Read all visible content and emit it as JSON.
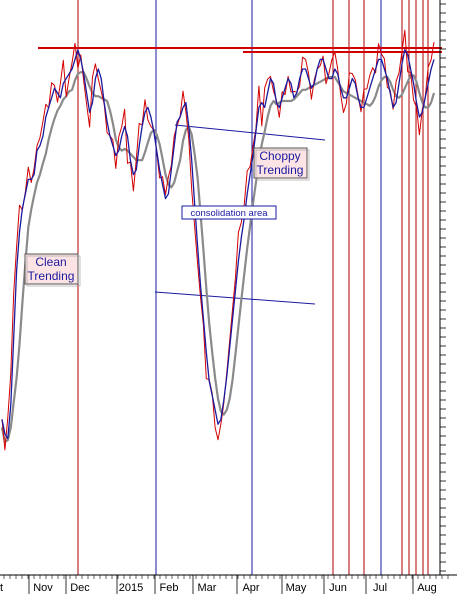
{
  "chart_data": {
    "type": "line",
    "title": "",
    "xlabel": "",
    "ylabel": "",
    "x_tick_labels": [
      "Nov",
      "Dec",
      "2015",
      "Feb",
      "Mar",
      "Apr",
      "May",
      "Jun",
      "Jul",
      "Aug"
    ],
    "grid": false,
    "y_axis_side": "right",
    "colors": {
      "price": "#d40000",
      "fast_ma": "#1a1aa0",
      "slow_ma": "#8a8a8a",
      "red_marker": "#b00000",
      "blue_marker": "#1a1aa0",
      "annotation_fill": "#fde4e4"
    },
    "series": [
      {
        "role": "price",
        "values": [
          22,
          16,
          20,
          30,
          48,
          58,
          64,
          68,
          70,
          74,
          70,
          76,
          80,
          78,
          84,
          86,
          88,
          90,
          92,
          88,
          90,
          94,
          92,
          96,
          94,
          100,
          98,
          96,
          92,
          88,
          84,
          92,
          94,
          96,
          90,
          86,
          82,
          80,
          78,
          76,
          80,
          82,
          84,
          78,
          74,
          72,
          76,
          82,
          84,
          88,
          86,
          84,
          80,
          76,
          72,
          70,
          66,
          72,
          76,
          82,
          86,
          84,
          90,
          86,
          80,
          72,
          62,
          54,
          46,
          40,
          32,
          28,
          26,
          22,
          20,
          24,
          28,
          34,
          40,
          46,
          52,
          58,
          62,
          66,
          72,
          74,
          80,
          84,
          90,
          86,
          88,
          92,
          94,
          90,
          86,
          88,
          90,
          92,
          94,
          90,
          88,
          92,
          94,
          96,
          94,
          92,
          90,
          94,
          96,
          98,
          96,
          94,
          92,
          94,
          96,
          92,
          90,
          88,
          90,
          92,
          94,
          90,
          88,
          86,
          88,
          90,
          92,
          94,
          96,
          98,
          96,
          94,
          92,
          88,
          86,
          90,
          94,
          98,
          100,
          96,
          94,
          90,
          86,
          84,
          88,
          90,
          94,
          96,
          98
        ]
      }
    ],
    "annotations": [
      {
        "text_lines": [
          "Clean",
          "Trending"
        ]
      },
      {
        "text_lines": [
          "Choppy",
          "Trending"
        ]
      },
      {
        "text_lines": [
          "consolidation area"
        ]
      }
    ]
  }
}
